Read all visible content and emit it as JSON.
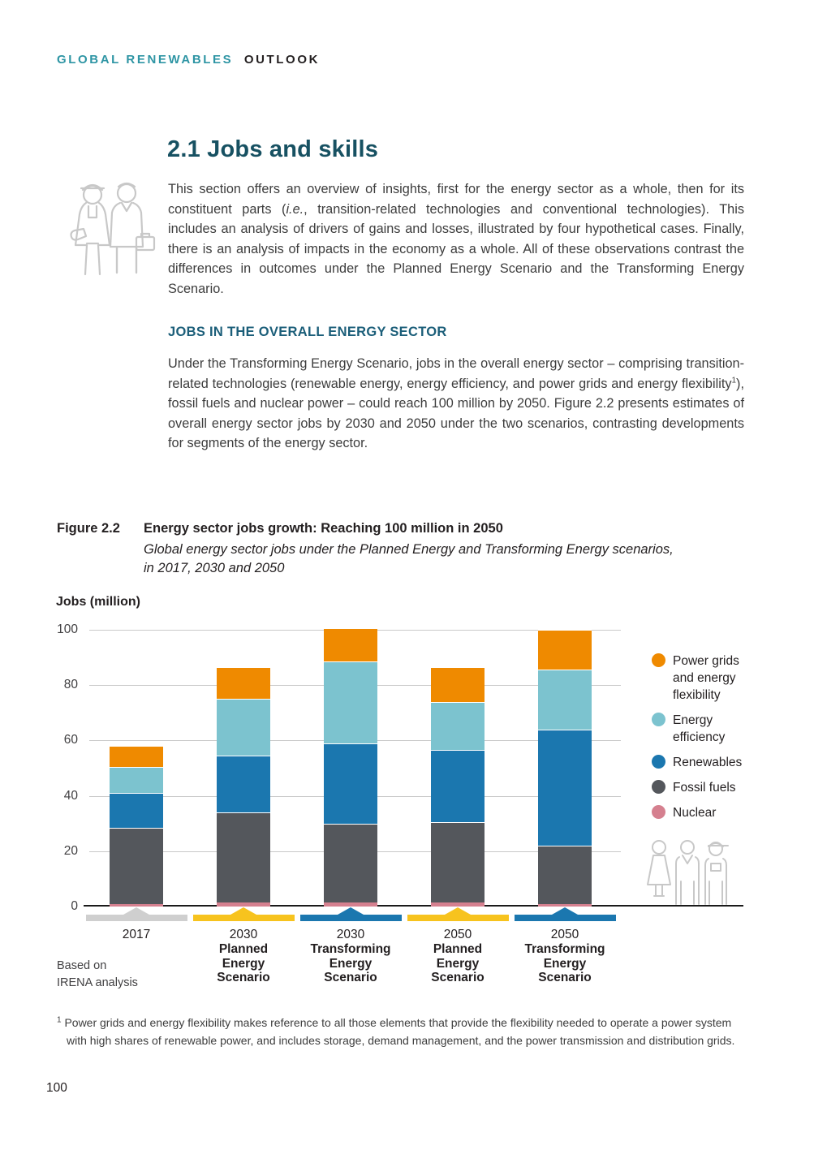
{
  "header": {
    "brand_left": "GLOBAL RENEWABLES",
    "brand_right": "OUTLOOK"
  },
  "section": {
    "title": "2.1  Jobs and skills",
    "intro": {
      "before": "This section offers an overview of insights, first for the energy sector as a whole, then for its constituent parts (",
      "italic": "i.e.",
      "after": ", transition-related technologies and conventional technologies). This includes an analysis of drivers of gains and losses, illustrated by four hypothetical cases. Finally, there is an analysis of impacts in the economy as a whole. All of these observations  contrast the differences in outcomes under the Planned Energy Scenario and the Transforming Energy Scenario."
    },
    "subheading": "JOBS IN THE OVERALL ENERGY SECTOR",
    "body": {
      "before": "Under the Transforming Energy Scenario, jobs in the overall energy sector – comprising transition-related technologies (renewable energy, energy efficiency, and power grids and energy flexibility",
      "sup": "1",
      "after": "), fossil fuels and nuclear power – could reach 100 million by 2050. Figure 2.2 presents estimates of overall energy sector jobs by 2030 and 2050 under the two scenarios, contrasting developments for segments of the energy sector."
    }
  },
  "figure": {
    "label": "Figure 2.2",
    "title": "Energy sector jobs growth: Reaching 100 million in 2050",
    "subtitle_line1": "Global energy sector jobs under the Planned Energy and Transforming Energy scenarios,",
    "subtitle_line2": "in 2017, 2030 and 2050",
    "source_line1": "Based on",
    "source_line2": "IRENA analysis"
  },
  "chart_data": {
    "type": "bar",
    "stacked": true,
    "title": "Energy sector jobs growth: Reaching 100 million in 2050",
    "ylabel": "Jobs (million)",
    "ylim": [
      0,
      100
    ],
    "yticks": [
      0,
      20,
      40,
      60,
      80,
      100
    ],
    "grid": true,
    "legend_position": "right",
    "categories": [
      {
        "year": "2017",
        "scenario_lines": [],
        "marker_color": "#cfcfcf"
      },
      {
        "year": "2030",
        "scenario_lines": [
          "Planned",
          "Energy",
          "Scenario"
        ],
        "marker_color": "#f7c31e"
      },
      {
        "year": "2030",
        "scenario_lines": [
          "Transforming",
          "Energy",
          "Scenario"
        ],
        "marker_color": "#1b77af"
      },
      {
        "year": "2050",
        "scenario_lines": [
          "Planned",
          "Energy",
          "Scenario"
        ],
        "marker_color": "#f7c31e"
      },
      {
        "year": "2050",
        "scenario_lines": [
          "Transforming",
          "Energy",
          "Scenario"
        ],
        "marker_color": "#1b77af"
      }
    ],
    "series": [
      {
        "name": "Nuclear",
        "color": "#d5808f",
        "values": [
          1.0,
          1.5,
          1.5,
          1.5,
          1.0
        ]
      },
      {
        "name": "Fossil fuels",
        "color": "#54575c",
        "values": [
          27.5,
          32.5,
          28.5,
          29.0,
          21.0
        ]
      },
      {
        "name": "Renewables",
        "color": "#1b77af",
        "values": [
          12.5,
          20.5,
          29.0,
          26.0,
          42.0
        ]
      },
      {
        "name": "Energy efficiency",
        "color": "#7cc3cf",
        "values": [
          9.5,
          20.5,
          29.5,
          17.5,
          21.5
        ]
      },
      {
        "name": "Power grids and energy flexibility",
        "color": "#ef8a00",
        "values": [
          7.5,
          11.5,
          12.0,
          12.5,
          14.5
        ]
      }
    ],
    "totals": [
      58,
      86.5,
      100.5,
      86.5,
      100
    ]
  },
  "legend": {
    "items": [
      {
        "label_lines": [
          "Power grids",
          "and energy",
          "flexibility"
        ],
        "color": "#ef8a00"
      },
      {
        "label_lines": [
          "Energy",
          "efficiency"
        ],
        "color": "#7cc3cf"
      },
      {
        "label_lines": [
          "Renewables"
        ],
        "color": "#1b77af"
      },
      {
        "label_lines": [
          "Fossil fuels"
        ],
        "color": "#54575c"
      },
      {
        "label_lines": [
          "Nuclear"
        ],
        "color": "#d5808f"
      }
    ]
  },
  "footnote": {
    "sup": "1",
    "text": " Power grids and energy flexibility makes reference to all those elements that provide the flexibility needed to operate a power system with high shares of renewable power, and includes storage, demand management, and the power transmission and distribution grids."
  },
  "page_number": "100"
}
